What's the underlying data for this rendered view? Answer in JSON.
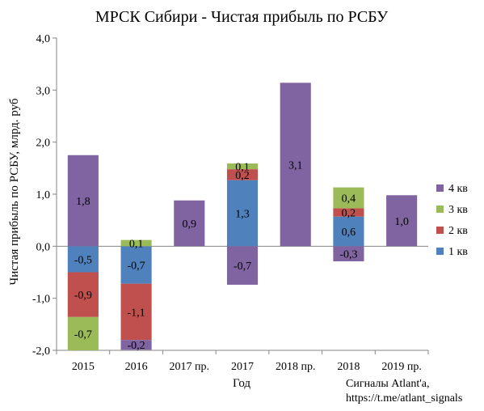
{
  "chart_data": {
    "type": "bar",
    "stacked": true,
    "title": "МРСК Сибири - Чистая прибыль по РСБУ",
    "xlabel": "Год",
    "ylabel": "Чистая прибыль по РСБУ, млрд. руб",
    "ylim": [
      -2.0,
      4.0
    ],
    "yticks": [
      "-2,0",
      "-1,0",
      "0,0",
      "1,0",
      "2,0",
      "3,0",
      "4,0"
    ],
    "grid": false,
    "legend_position": "right",
    "categories": [
      "2015",
      "2016",
      "2017 пр.",
      "2017",
      "2018 пр.",
      "2018",
      "2019 пр."
    ],
    "series": [
      {
        "name": "1 кв",
        "color": "#4F81BD",
        "values": [
          -0.5,
          -0.72,
          null,
          1.27,
          null,
          0.57,
          null
        ],
        "labels": [
          "-0,5",
          "-0,7",
          "",
          "1,3",
          "",
          "0,6",
          ""
        ]
      },
      {
        "name": "2 кв",
        "color": "#C0504D",
        "values": [
          -0.86,
          -1.08,
          null,
          0.21,
          null,
          0.16,
          null
        ],
        "labels": [
          "-0,9",
          "-1,1",
          "",
          "0,2",
          "",
          "0,2",
          ""
        ]
      },
      {
        "name": "3 кв",
        "color": "#9BBB59",
        "values": [
          -0.68,
          0.12,
          null,
          0.11,
          null,
          0.4,
          null
        ],
        "labels": [
          "-0,7",
          "0,1",
          "",
          "0,1",
          "",
          "0,4",
          ""
        ]
      },
      {
        "name": "4 кв",
        "color": "#8064A2",
        "values": [
          1.75,
          -0.19,
          0.88,
          -0.74,
          3.14,
          -0.29,
          0.98
        ],
        "labels": [
          "1,8",
          "-0,2",
          "0,9",
          "-0,7",
          "3,1",
          "-0,3",
          "1,0"
        ]
      }
    ]
  },
  "footer": {
    "line1": "Сигналы Atlant'a,",
    "line2": "https://t.me/atlant_signals"
  }
}
